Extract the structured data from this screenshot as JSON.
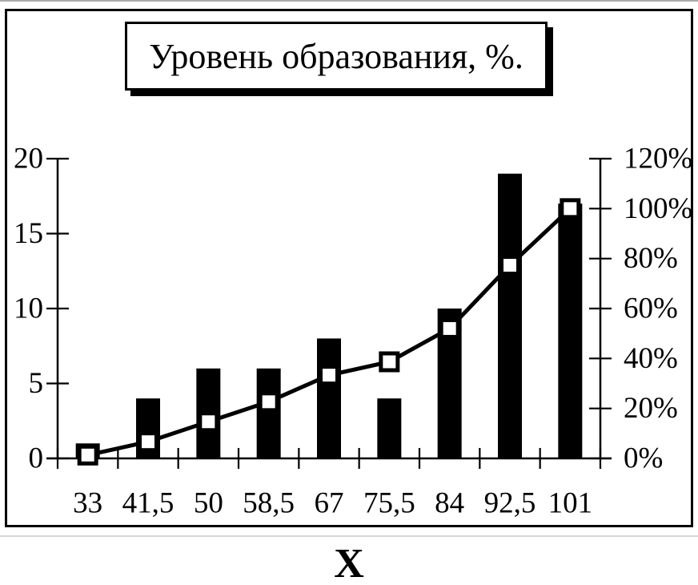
{
  "page": {
    "background": "#ffffff",
    "frame_color": "#000000",
    "top_rule_color": "#a9a9a9"
  },
  "chart_data": {
    "type": "bar",
    "subtype": "pareto-histogram",
    "title": "Уровень образования, %.",
    "xlabel": "X",
    "categories": [
      "33",
      "41,5",
      "50",
      "58,5",
      "67",
      "75,5",
      "84",
      "92,5",
      "101"
    ],
    "series": [
      {
        "name": "frequency-bars",
        "type": "bar",
        "axis": "left",
        "values": [
          1,
          4,
          6,
          6,
          8,
          4,
          10,
          19,
          17
        ],
        "color": "#000000"
      },
      {
        "name": "cumulative-percent-line",
        "type": "line",
        "axis": "right",
        "values": [
          1.33,
          6.67,
          14.67,
          22.67,
          33.33,
          38.67,
          52,
          77.33,
          100
        ],
        "marker": "open-square",
        "marker_fill": "#ffffff",
        "color": "#000000"
      }
    ],
    "left_axis": {
      "min": 0,
      "max": 20,
      "ticks": [
        0,
        5,
        10,
        15,
        20
      ],
      "labels": [
        "0",
        "5",
        "10",
        "15",
        "20"
      ]
    },
    "right_axis": {
      "min": 0,
      "max": 120,
      "ticks": [
        0,
        20,
        40,
        60,
        80,
        100,
        120
      ],
      "labels": [
        "0%",
        "20%",
        "40%",
        "60%",
        "80%",
        "100%",
        "120%"
      ]
    },
    "grid": false,
    "legend": "none"
  }
}
